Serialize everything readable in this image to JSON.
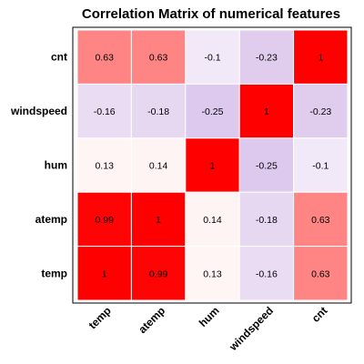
{
  "chart_data": {
    "type": "heatmap",
    "title": "Correlation Matrix of numerical features",
    "x_categories": [
      "temp",
      "atemp",
      "hum",
      "windspeed",
      "cnt"
    ],
    "y_categories": [
      "temp",
      "atemp",
      "hum",
      "windspeed",
      "cnt"
    ],
    "matrix": [
      [
        1,
        0.99,
        0.13,
        -0.16,
        0.63
      ],
      [
        0.99,
        1,
        0.14,
        -0.18,
        0.63
      ],
      [
        0.13,
        0.14,
        1,
        -0.25,
        -0.1
      ],
      [
        -0.16,
        -0.18,
        -0.25,
        1,
        -0.23
      ],
      [
        0.63,
        0.63,
        -0.1,
        -0.23,
        1
      ]
    ],
    "value_labels": [
      [
        "1",
        "0.99",
        "0.13",
        "-0.16",
        "0.63"
      ],
      [
        "0.99",
        "1",
        "0.14",
        "-0.18",
        "0.63"
      ],
      [
        "0.13",
        "0.14",
        "1",
        "-0.25",
        "-0.1"
      ],
      [
        "-0.16",
        "-0.18",
        "-0.25",
        "1",
        "-0.23"
      ],
      [
        "0.63",
        "0.63",
        "-0.1",
        "-0.23",
        "1"
      ]
    ],
    "color_scale": {
      "low": "#6a0dad",
      "mid": "#ffffff",
      "high": "#ff0000"
    },
    "grid": false,
    "legend": "none"
  }
}
